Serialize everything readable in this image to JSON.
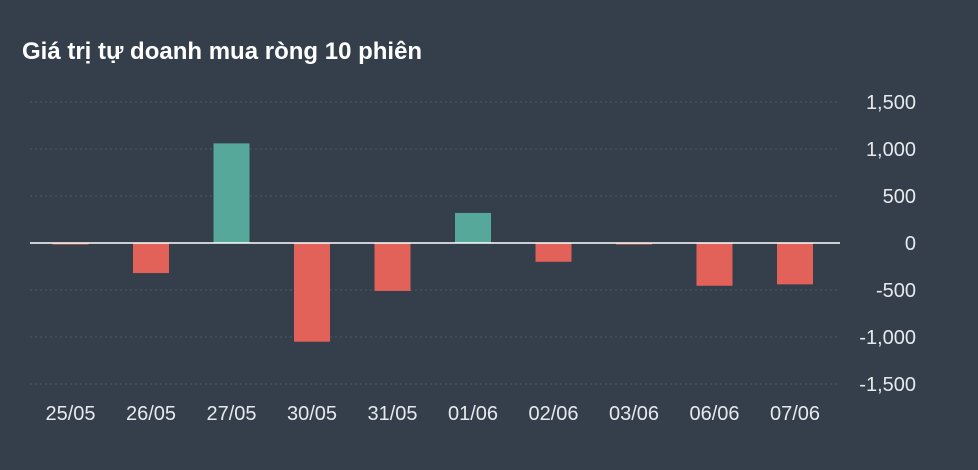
{
  "chart_data": {
    "type": "bar",
    "title": "Giá trị tự doanh mua ròng 10 phiên",
    "xlabel": "",
    "ylabel": "",
    "categories": [
      "25/05",
      "26/05",
      "27/05",
      "30/05",
      "31/05",
      "01/06",
      "02/06",
      "03/06",
      "06/06",
      "07/06"
    ],
    "values": [
      -10,
      -320,
      1060,
      -1050,
      -510,
      320,
      -200,
      -5,
      -455,
      -440
    ],
    "ylim": [
      -1500,
      1500
    ],
    "yticks": [
      1500,
      1000,
      500,
      0,
      -500,
      -1000,
      -1500
    ],
    "ytick_labels": [
      "1,500",
      "1,000",
      "500",
      "0",
      "-500",
      "-1,000",
      "-1,500"
    ],
    "y_axis_position": "right",
    "grid": true,
    "legend": "none",
    "colors": {
      "positive": "#55a89a",
      "negative": "#e2625a",
      "background": "#343f4b",
      "gridline": "#4e5967",
      "zero_line": "#ffffff",
      "text": "#e6e9ed"
    }
  }
}
